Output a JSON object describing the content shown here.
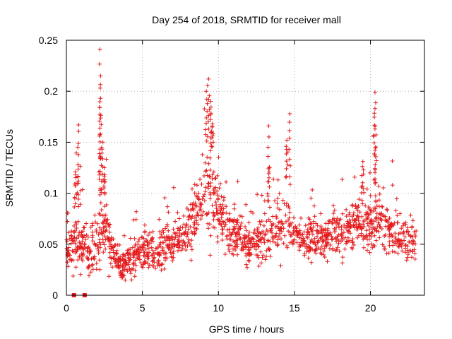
{
  "chart_data": {
    "type": "scatter",
    "title": "Day 254 of 2018, SRMTID for receiver mall",
    "xlabel": "GPS time / hours",
    "ylabel": "SRMTID / TECUs",
    "xlim": [
      0,
      23
    ],
    "ylim": [
      0,
      0.25
    ],
    "xticks": [
      0,
      5,
      10,
      15,
      20
    ],
    "xtick_labels": [
      "0",
      "5",
      "10",
      "15",
      "20"
    ],
    "yticks": [
      0,
      0.05,
      0.1,
      0.15,
      0.2,
      0.25
    ],
    "ytick_labels": [
      "0",
      "0.05",
      "0.1",
      "0.15",
      "0.2",
      "0.25"
    ],
    "grid": true,
    "marker": "+",
    "color": "#e41a1c",
    "peaks": [
      {
        "x": 0.6,
        "y": 0.118
      },
      {
        "x": 0.75,
        "y": 0.145
      },
      {
        "x": 0.8,
        "y": 0.167
      },
      {
        "x": 2.2,
        "y": 0.241
      },
      {
        "x": 2.25,
        "y": 0.215
      },
      {
        "x": 2.25,
        "y": 0.193
      },
      {
        "x": 2.2,
        "y": 0.184
      },
      {
        "x": 2.4,
        "y": 0.15
      },
      {
        "x": 2.5,
        "y": 0.125
      },
      {
        "x": 9.2,
        "y": 0.2
      },
      {
        "x": 9.35,
        "y": 0.212
      },
      {
        "x": 9.5,
        "y": 0.19
      },
      {
        "x": 9.6,
        "y": 0.168
      },
      {
        "x": 13.3,
        "y": 0.166
      },
      {
        "x": 13.3,
        "y": 0.124
      },
      {
        "x": 14.5,
        "y": 0.152
      },
      {
        "x": 14.7,
        "y": 0.178
      },
      {
        "x": 20.3,
        "y": 0.199
      },
      {
        "x": 20.3,
        "y": 0.183
      },
      {
        "x": 20.3,
        "y": 0.163
      },
      {
        "x": 19.5,
        "y": 0.131
      }
    ],
    "envelope": [
      {
        "x": 0.0,
        "base": 0.045,
        "spread": 0.02
      },
      {
        "x": 0.5,
        "base": 0.055,
        "spread": 0.03
      },
      {
        "x": 1.0,
        "base": 0.05,
        "spread": 0.025
      },
      {
        "x": 1.5,
        "base": 0.045,
        "spread": 0.025
      },
      {
        "x": 2.0,
        "base": 0.05,
        "spread": 0.035
      },
      {
        "x": 2.5,
        "base": 0.065,
        "spread": 0.03
      },
      {
        "x": 3.0,
        "base": 0.045,
        "spread": 0.025
      },
      {
        "x": 3.5,
        "base": 0.03,
        "spread": 0.015
      },
      {
        "x": 4.0,
        "base": 0.033,
        "spread": 0.015
      },
      {
        "x": 4.5,
        "base": 0.038,
        "spread": 0.018
      },
      {
        "x": 5.0,
        "base": 0.045,
        "spread": 0.02
      },
      {
        "x": 6.0,
        "base": 0.045,
        "spread": 0.022
      },
      {
        "x": 7.0,
        "base": 0.05,
        "spread": 0.022
      },
      {
        "x": 8.0,
        "base": 0.06,
        "spread": 0.025
      },
      {
        "x": 8.5,
        "base": 0.085,
        "spread": 0.03
      },
      {
        "x": 9.0,
        "base": 0.1,
        "spread": 0.04
      },
      {
        "x": 9.5,
        "base": 0.105,
        "spread": 0.045
      },
      {
        "x": 10.0,
        "base": 0.08,
        "spread": 0.03
      },
      {
        "x": 11.0,
        "base": 0.06,
        "spread": 0.022
      },
      {
        "x": 12.0,
        "base": 0.05,
        "spread": 0.02
      },
      {
        "x": 13.0,
        "base": 0.055,
        "spread": 0.022
      },
      {
        "x": 14.0,
        "base": 0.065,
        "spread": 0.025
      },
      {
        "x": 14.5,
        "base": 0.075,
        "spread": 0.035
      },
      {
        "x": 15.0,
        "base": 0.06,
        "spread": 0.022
      },
      {
        "x": 16.0,
        "base": 0.055,
        "spread": 0.022
      },
      {
        "x": 17.0,
        "base": 0.055,
        "spread": 0.022
      },
      {
        "x": 18.0,
        "base": 0.06,
        "spread": 0.025
      },
      {
        "x": 19.0,
        "base": 0.07,
        "spread": 0.025
      },
      {
        "x": 20.0,
        "base": 0.07,
        "spread": 0.028
      },
      {
        "x": 20.5,
        "base": 0.075,
        "spread": 0.03
      },
      {
        "x": 21.0,
        "base": 0.065,
        "spread": 0.025
      },
      {
        "x": 22.0,
        "base": 0.055,
        "spread": 0.025
      },
      {
        "x": 23.0,
        "base": 0.05,
        "spread": 0.02
      }
    ],
    "zero_markers": [
      {
        "x": 0.5,
        "y": 0.0
      },
      {
        "x": 1.2,
        "y": 0.0
      }
    ],
    "point_count": 1600
  }
}
